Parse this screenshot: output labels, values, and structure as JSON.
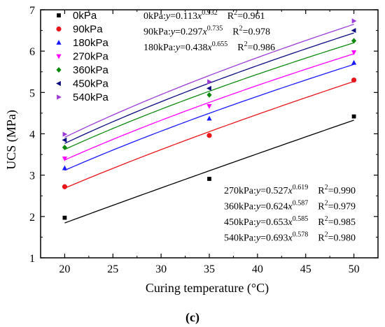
{
  "chart_data": {
    "type": "scatter",
    "xlabel": "Curing temperature (°C)",
    "ylabel": "UCS (MPa)",
    "panel_label": "(c)",
    "xlim": [
      17.5,
      52.5
    ],
    "ylim": [
      1,
      7
    ],
    "xticks": [
      20,
      25,
      30,
      35,
      40,
      45,
      50
    ],
    "yticks": [
      1,
      2,
      3,
      4,
      5,
      6,
      7
    ],
    "x": [
      20,
      35,
      50
    ],
    "legend_position": "top-left",
    "series": [
      {
        "name": "0kPa",
        "color": "#000000",
        "marker": "square",
        "values": [
          1.97,
          2.91,
          4.42
        ],
        "fit": {
          "a": 0.113,
          "b": 0.932
        }
      },
      {
        "name": "90kPa",
        "color": "#e8161b",
        "marker": "circle",
        "values": [
          2.72,
          3.96,
          5.3
        ],
        "fit": {
          "a": 0.297,
          "b": 0.735
        }
      },
      {
        "name": "180kPa",
        "color": "#1a1aff",
        "marker": "triangle-up",
        "values": [
          3.17,
          4.37,
          5.72
        ],
        "fit": {
          "a": 0.438,
          "b": 0.655
        }
      },
      {
        "name": "270kPa",
        "color": "#ff00ff",
        "marker": "triangle-down",
        "values": [
          3.4,
          4.67,
          5.97
        ],
        "fit": {
          "a": 0.527,
          "b": 0.619
        }
      },
      {
        "name": "360kPa",
        "color": "#0f8a0f",
        "marker": "diamond",
        "values": [
          3.67,
          4.94,
          6.25
        ],
        "fit": {
          "a": 0.624,
          "b": 0.587
        }
      },
      {
        "name": "450kPa",
        "color": "#0a0a80",
        "marker": "triangle-left",
        "values": [
          3.85,
          5.1,
          6.5
        ],
        "fit": {
          "a": 0.653,
          "b": 0.585
        }
      },
      {
        "name": "540kPa",
        "color": "#9c3bd6",
        "marker": "triangle-right",
        "values": [
          3.99,
          5.26,
          6.73
        ],
        "fit": {
          "a": 0.693,
          "b": 0.578
        }
      }
    ],
    "annotations_top": [
      {
        "prefix": "0kPa:",
        "a": "0.113",
        "exp": "0.932",
        "r2": "0.961"
      },
      {
        "prefix": "90kPa:",
        "a": "0.297",
        "exp": "0.735",
        "r2": "0.978"
      },
      {
        "prefix": "180kPa:",
        "a": "0.438",
        "exp": "0.655",
        "r2": "0.986"
      }
    ],
    "annotations_bottom": [
      {
        "prefix": "270kPa:",
        "a": "0.527",
        "exp": "0.619",
        "r2": "0.990"
      },
      {
        "prefix": "360kPa:",
        "a": "0.624",
        "exp": "0.587",
        "r2": "0.979"
      },
      {
        "prefix": "450kPa:",
        "a": "0.653",
        "exp": "0.585",
        "r2": "0.985"
      },
      {
        "prefix": "540kPa:",
        "a": "0.693",
        "exp": "0.578",
        "r2": "0.980"
      }
    ]
  }
}
